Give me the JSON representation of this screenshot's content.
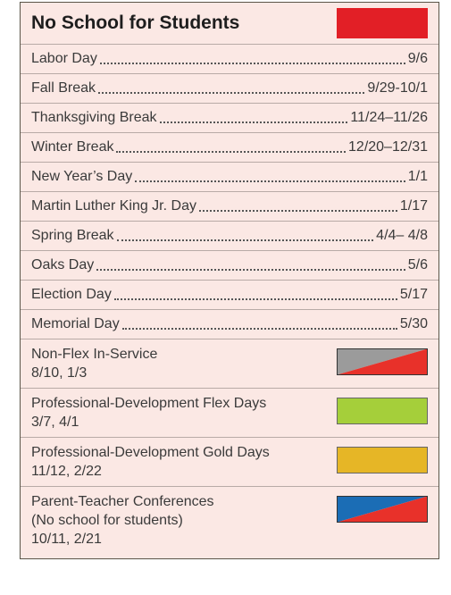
{
  "header": {
    "title": "No School for Students",
    "color": "#e21f26"
  },
  "holidays": [
    {
      "name": "Labor Day",
      "dates": "9/6"
    },
    {
      "name": "Fall Break",
      "dates": "9/29-10/1"
    },
    {
      "name": "Thanksgiving Break",
      "dates": "11/24–11/26"
    },
    {
      "name": "Winter Break",
      "dates": "12/20–12/31"
    },
    {
      "name": "New Year’s Day",
      "dates": "1/1"
    },
    {
      "name": "Martin Luther King Jr. Day",
      "dates": "1/17"
    },
    {
      "name": "Spring Break",
      "dates": "4/4– 4/8"
    },
    {
      "name": "Oaks Day",
      "dates": "5/6"
    },
    {
      "name": "Election Day",
      "dates": "5/17"
    },
    {
      "name": "Memorial Day",
      "dates": "5/30"
    }
  ],
  "legend": [
    {
      "label": "Non-Flex In-Service",
      "dates": "8/10, 1/3",
      "colors": [
        "#9b9b9b",
        "#e8312a"
      ]
    },
    {
      "label": "Professional-Development Flex Days",
      "dates": "3/7, 4/1",
      "colors": [
        "#a5cf3a"
      ]
    },
    {
      "label": "Professional-Development Gold Days",
      "dates": "11/12, 2/22",
      "colors": [
        "#e6b626"
      ]
    },
    {
      "label": "Parent-Teacher Conferences",
      "note": "(No school for students)",
      "dates": "10/11, 2/21",
      "colors": [
        "#1b6db5",
        "#e8312a"
      ]
    }
  ]
}
